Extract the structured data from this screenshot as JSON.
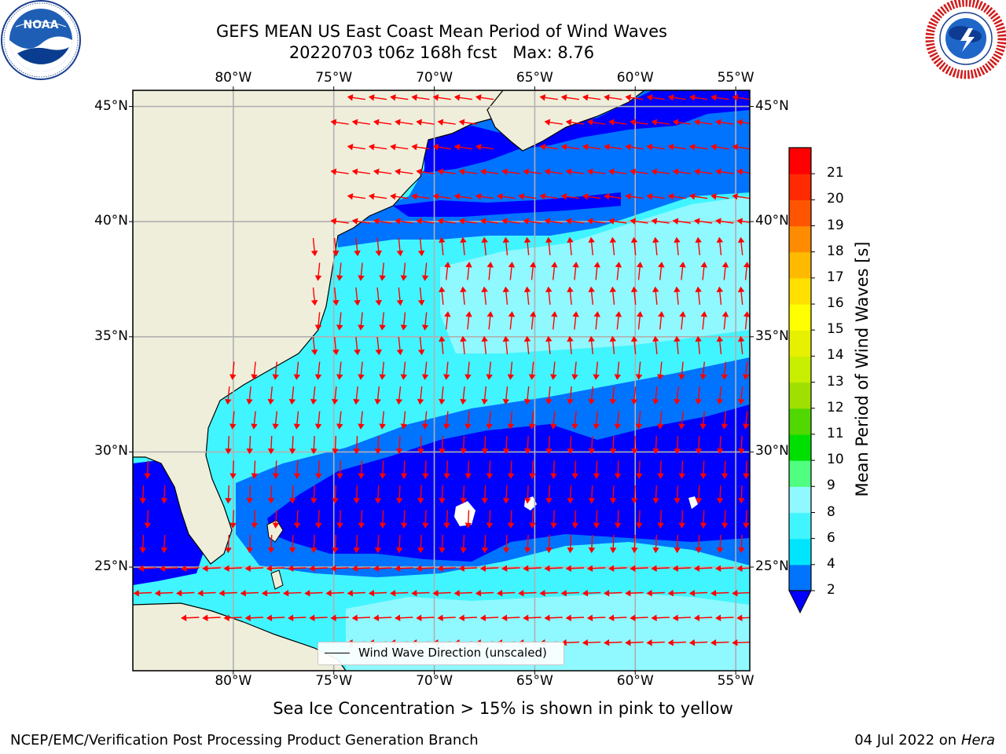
{
  "header": {
    "title_line1": "GEFS MEAN US East Coast Mean Period of Wind Waves",
    "title_line2": "20220703 t06z 168h fcst   Max: 8.76"
  },
  "logos": {
    "left": {
      "icon": "noaa-logo-icon",
      "text": "NOAA"
    },
    "right": {
      "icon": "nws-logo-icon"
    }
  },
  "map": {
    "lon_labels": [
      "80°W",
      "75°W",
      "70°W",
      "65°W",
      "60°W",
      "55°W"
    ],
    "lat_labels": [
      "45°N",
      "40°N",
      "35°N",
      "30°N",
      "25°N"
    ],
    "lon_ticks": [
      -80,
      -75,
      -70,
      -65,
      -60,
      -55
    ],
    "lat_ticks": [
      45,
      40,
      35,
      30,
      25
    ],
    "lon_range": [
      -85,
      -54.3
    ],
    "lat_range": [
      20.5,
      45.7
    ],
    "grid": true,
    "land_color": "#efeedb",
    "arrow_color": "#ff0000",
    "legend": {
      "label": "Wind Wave Direction (unscaled)",
      "placement": "lower-center"
    }
  },
  "colorbar": {
    "label": "Mean Period of Wind Waves [s]",
    "ticks": [
      "2",
      "4",
      "6",
      "8",
      "9",
      "10",
      "11",
      "12",
      "13",
      "14",
      "15",
      "16",
      "17",
      "18",
      "19",
      "20",
      "21"
    ],
    "colors": [
      "#0073ff",
      "#00e5ff",
      "#40f5ff",
      "#90f8ff",
      "#50ff80",
      "#00e000",
      "#50d800",
      "#a0e000",
      "#c8ee00",
      "#e6f000",
      "#ffff00",
      "#ffe000",
      "#ffba00",
      "#ff8c00",
      "#ff5500",
      "#ff2a00",
      "#ff0000"
    ],
    "extend_color": "#0000ff"
  },
  "notes": {
    "sea_ice": "Sea Ice Concentration > 15% is shown in pink to yellow"
  },
  "footer": {
    "left": "NCEP/EMC/Verification Post Processing Product Generation Branch",
    "date": "04 Jul 2022 on ",
    "machine": "Hera"
  }
}
